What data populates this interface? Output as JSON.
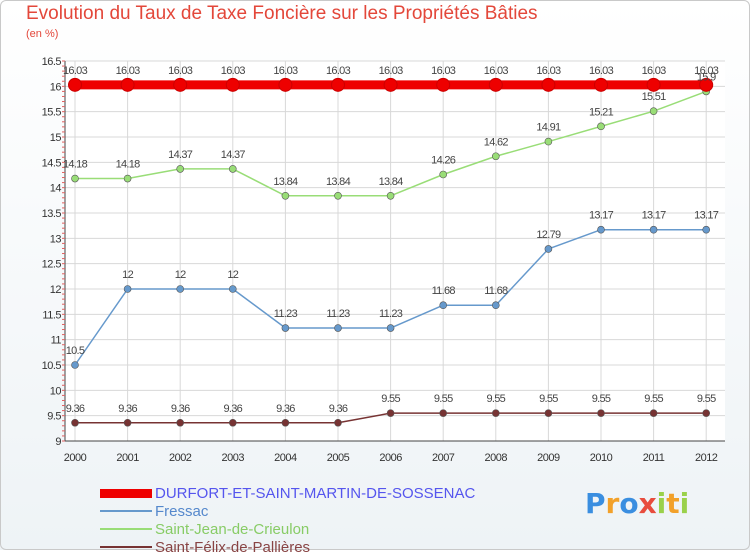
{
  "chart_data": {
    "type": "line",
    "title": "Evolution du Taux de Taxe Foncière sur les Propriétés Bâties",
    "unit_label": "(en %)",
    "x": [
      "2000",
      "2001",
      "2002",
      "2003",
      "2004",
      "2005",
      "2006",
      "2007",
      "2008",
      "2009",
      "2010",
      "2011",
      "2012"
    ],
    "y_ticks": [
      "9",
      "9.5",
      "10",
      "10.5",
      "11",
      "11.5",
      "12",
      "12.5",
      "13",
      "13.5",
      "14",
      "14.5",
      "15",
      "15.5",
      "16",
      "16.5"
    ],
    "ylim": [
      9,
      16.5
    ],
    "grid": true,
    "legend_position": "bottom-left",
    "series": [
      {
        "name": "DURFORT-ET-SAINT-MARTIN-DE-SOSSENAC",
        "color": "#ee0000",
        "label_color": "#5555ee",
        "values": [
          16.03,
          16.03,
          16.03,
          16.03,
          16.03,
          16.03,
          16.03,
          16.03,
          16.03,
          16.03,
          16.03,
          16.03,
          16.03
        ],
        "labels": [
          "16.03",
          "16.03",
          "16.03",
          "16.03",
          "16.03",
          "16.03",
          "16.03",
          "16.03",
          "16.03",
          "16.03",
          "16.03",
          "16.03",
          "16.03"
        ]
      },
      {
        "name": "Fressac",
        "color": "#6699cc",
        "label_color": "#5588cc",
        "values": [
          10.5,
          12,
          12,
          12,
          11.23,
          11.23,
          11.23,
          11.68,
          11.68,
          12.79,
          13.17,
          13.17,
          13.17
        ],
        "labels": [
          "10.5",
          "12",
          "12",
          "12",
          "11.23",
          "11.23",
          "11.23",
          "11.68",
          "11.68",
          "12.79",
          "13.17",
          "13.17",
          "13.17"
        ]
      },
      {
        "name": "Saint-Jean-de-Crieulon",
        "color": "#99dd77",
        "label_color": "#88cc66",
        "values": [
          14.18,
          14.18,
          14.37,
          14.37,
          13.84,
          13.84,
          13.84,
          14.26,
          14.62,
          14.91,
          15.21,
          15.51,
          15.9
        ],
        "labels": [
          "14.18",
          "14.18",
          "14.37",
          "14.37",
          "13.84",
          "13.84",
          "13.84",
          "14.26",
          "14.62",
          "14.91",
          "15.21",
          "15.51",
          "15.9"
        ]
      },
      {
        "name": "Saint-Félix-de-Pallières",
        "color": "#773333",
        "label_color": "#884444",
        "values": [
          9.36,
          9.36,
          9.36,
          9.36,
          9.36,
          9.36,
          9.55,
          9.55,
          9.55,
          9.55,
          9.55,
          9.55,
          9.55
        ],
        "labels": [
          "9.36",
          "9.36",
          "9.36",
          "9.36",
          "9.36",
          "9.36",
          "9.55",
          "9.55",
          "9.55",
          "9.55",
          "9.55",
          "9.55",
          "9.55"
        ]
      }
    ]
  },
  "logo": {
    "letters": [
      "P",
      "r",
      "o",
      "x",
      "i",
      "t",
      "i"
    ],
    "colors": [
      "#3a8ee0",
      "#f2a12a",
      "#3a8ee0",
      "#e84c3d",
      "#9ad14b",
      "#f2a12a",
      "#9ad14b"
    ]
  }
}
